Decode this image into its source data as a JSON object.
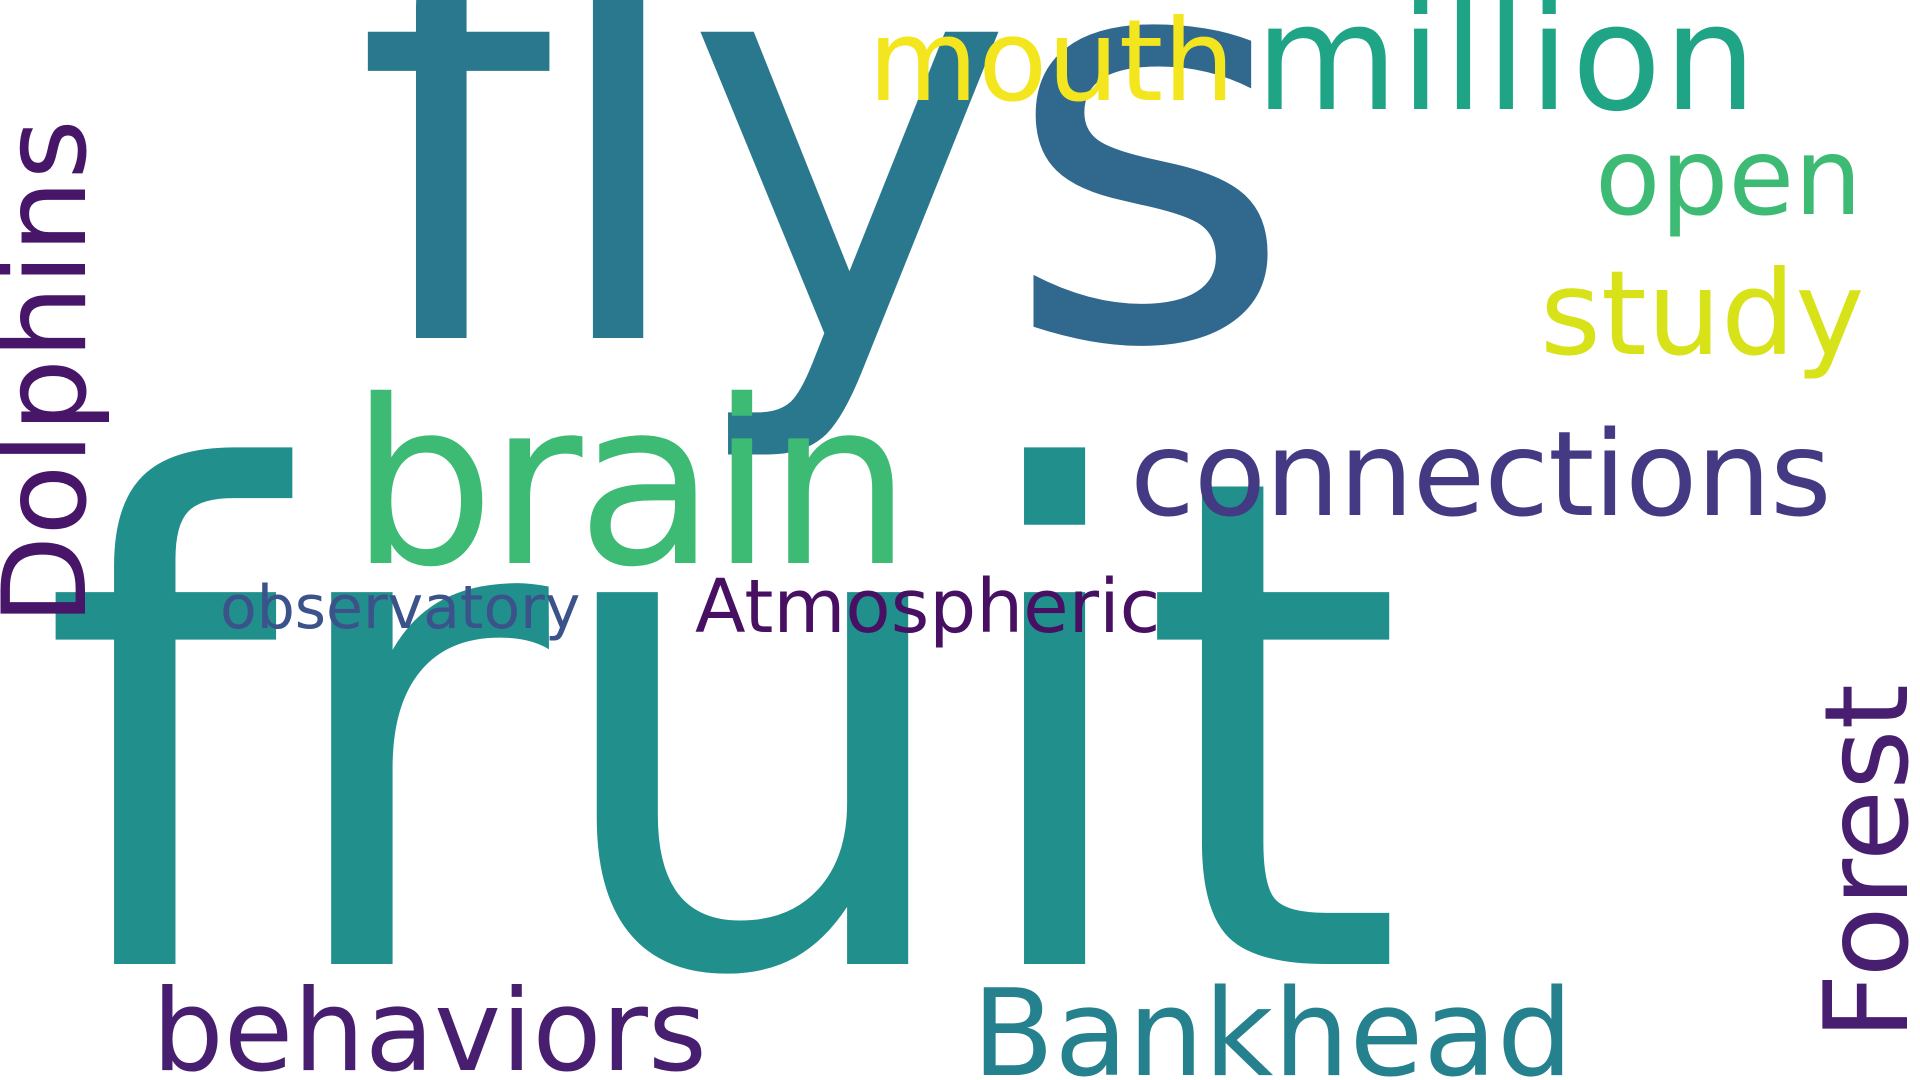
{
  "words": {
    "fruit": "fruit",
    "flys_main": "fly",
    "flys_end": "s",
    "brain": "brain",
    "connections": "connections",
    "observatory": "observatory",
    "atmospheric": "Atmospheric",
    "mouth": "mouth",
    "million": "million",
    "open": "open",
    "study": "study",
    "behaviors": "behaviors",
    "bankhead": "Bankhead",
    "dolphins": "Dolphins",
    "forest": "Forest"
  },
  "colors": {
    "background": "#ffffff",
    "fruit": "#21908d",
    "flys": "#2a788e",
    "flys_s": "#31688e",
    "brain": "#3dbb74",
    "connections": "#443a83",
    "observatory": "#3b528b",
    "atmospheric": "#471063",
    "mouth": "#f4e61e",
    "million": "#20a486",
    "open": "#3dbb74",
    "study": "#d8e219",
    "behaviors": "#481f70",
    "bankhead": "#26818e",
    "dolphins": "#481668",
    "forest": "#481f70"
  }
}
